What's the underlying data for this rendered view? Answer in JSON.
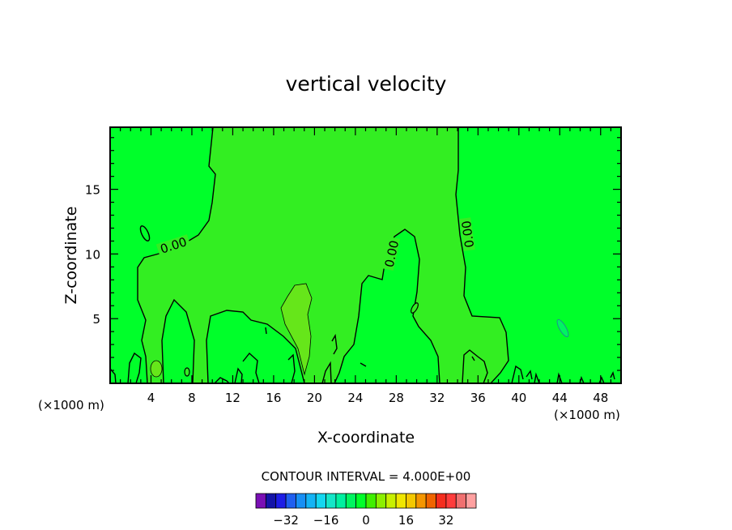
{
  "chart_data": {
    "type": "contour",
    "title": "vertical velocity",
    "xlabel": "X-coordinate",
    "ylabel": "Z-coordinate",
    "x_unit": "(×1000 m)",
    "xlim": [
      0,
      50
    ],
    "ylim": [
      0,
      19.8
    ],
    "x_ticks": [
      4,
      8,
      12,
      16,
      20,
      24,
      28,
      32,
      36,
      40,
      44,
      48
    ],
    "y_ticks": [
      5,
      10,
      15
    ],
    "zero_contour_label": "0.00",
    "contour_interval_label": "CONTOUR INTERVAL = 4.000E+00",
    "colors": {
      "background_field": "#00ff2a",
      "positive_region": "#33ee22",
      "positive_core": "#66e61a",
      "frame": "#000000"
    },
    "colorbar": {
      "tick_labels": [
        "−32",
        "−16",
        "0",
        "16",
        "32"
      ],
      "tick_values": [
        -32,
        -16,
        0,
        16,
        32
      ],
      "colors": [
        "#7a0fb5",
        "#1414a8",
        "#1e1ee6",
        "#1f5ff0",
        "#178ff5",
        "#14b4f5",
        "#14d7f0",
        "#14e6c8",
        "#00f0a0",
        "#00f560",
        "#00ff2a",
        "#40f000",
        "#8cf000",
        "#c8f000",
        "#f0e600",
        "#f5c800",
        "#f59600",
        "#f06400",
        "#f52d1e",
        "#ff3c3c",
        "#f07070",
        "#ffa0a0"
      ]
    }
  }
}
